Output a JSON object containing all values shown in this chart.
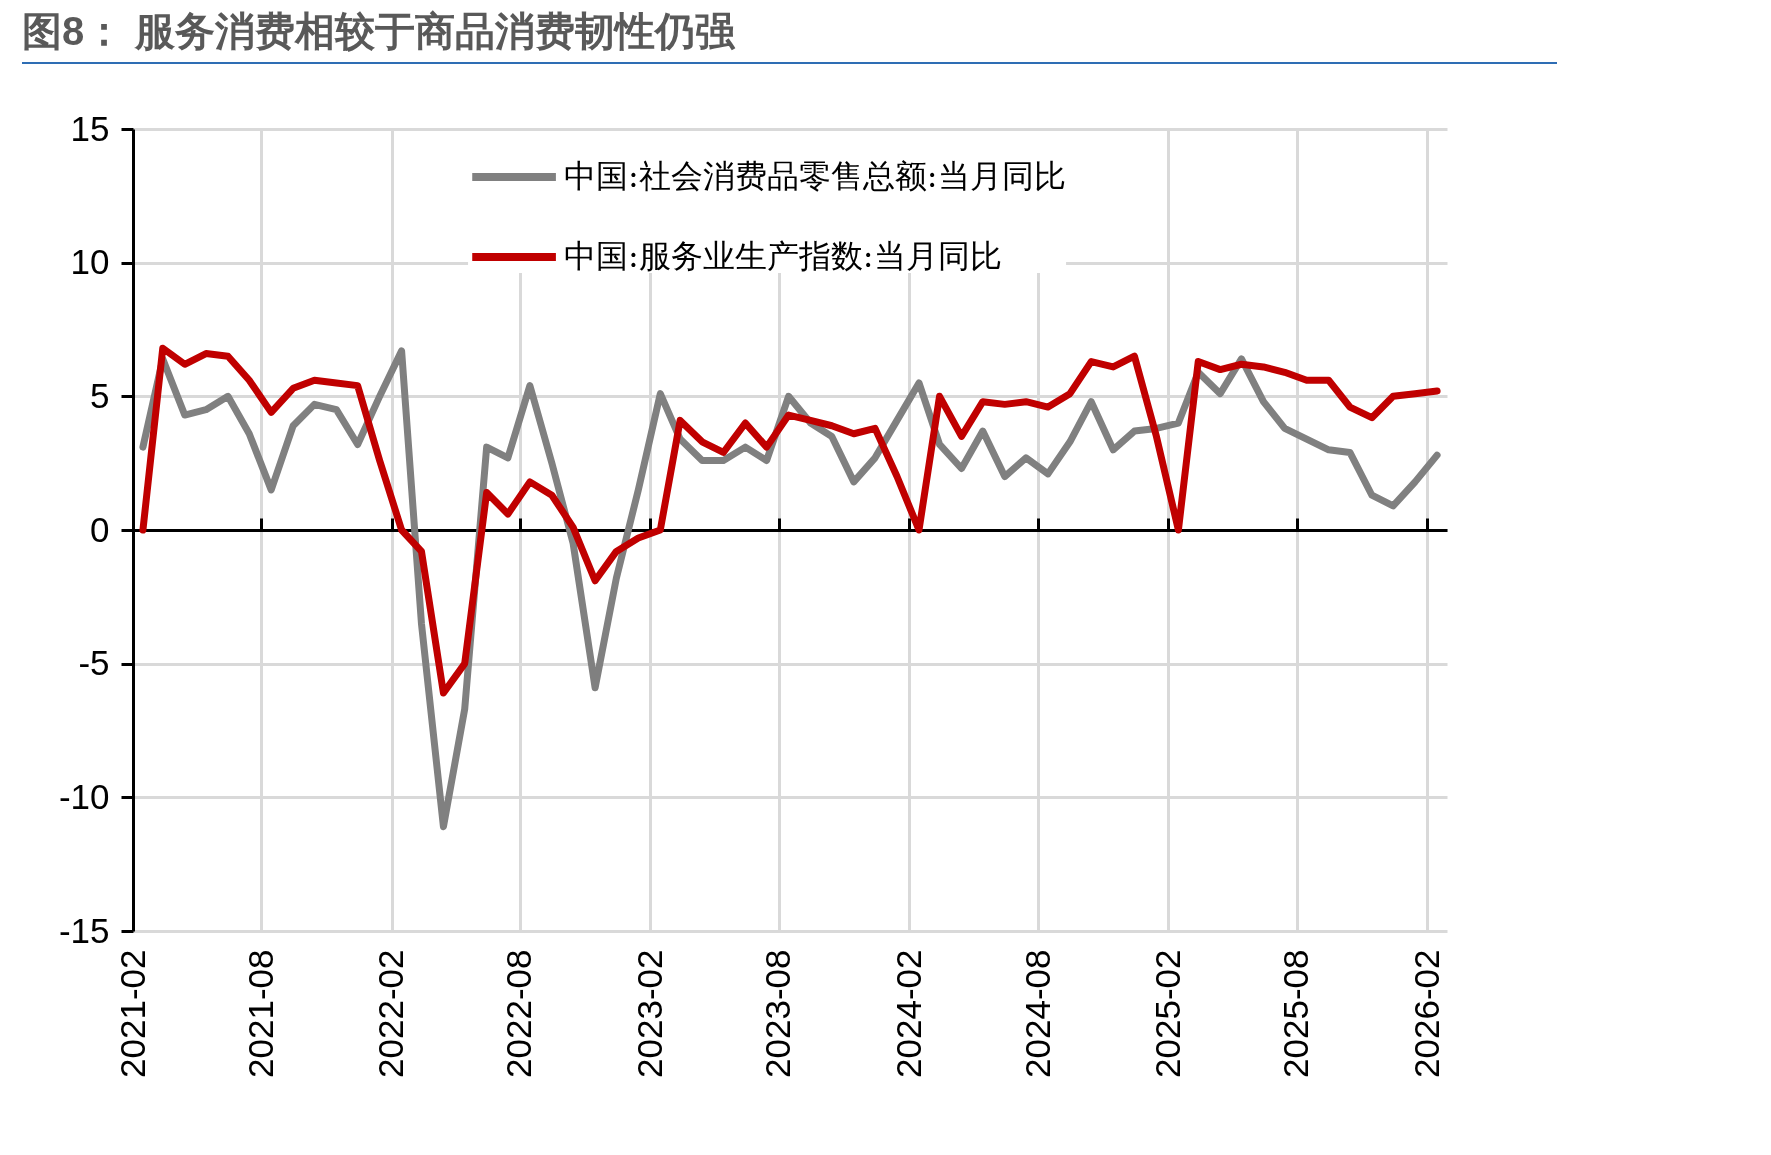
{
  "chart_data": {
    "type": "line",
    "title": "图8： 服务消费相较于商品消费韧性仍强",
    "x": [
      "2021-02-15",
      "2021-03-15",
      "2021-04-15",
      "2021-05-15",
      "2021-06-15",
      "2021-07-15",
      "2021-08-15",
      "2021-09-15",
      "2021-10-15",
      "2021-11-15",
      "2021-12-15",
      "2022-01-15",
      "2022-02-15",
      "2022-03-15",
      "2022-04-15",
      "2022-05-15",
      "2022-06-15",
      "2022-07-15",
      "2022-08-15",
      "2022-09-15",
      "2022-10-15",
      "2022-11-15",
      "2022-12-15",
      "2023-01-15",
      "2023-02-15",
      "2023-03-15",
      "2023-04-15",
      "2023-05-15",
      "2023-06-15",
      "2023-07-15",
      "2023-08-15",
      "2023-09-15",
      "2023-10-15",
      "2023-11-15",
      "2023-12-15",
      "2024-01-15",
      "2024-02-15",
      "2024-03-15",
      "2024-04-15",
      "2024-05-15",
      "2024-06-15",
      "2024-07-15",
      "2024-08-15",
      "2024-09-15",
      "2024-10-15",
      "2024-11-15",
      "2024-12-15",
      "2025-01-15",
      "2025-02-15",
      "2025-03-15",
      "2025-04-15",
      "2025-05-15",
      "2025-06-15",
      "2025-07-15",
      "2025-08-15",
      "2025-09-15",
      "2025-10-15",
      "2025-11-15",
      "2025-12-15",
      "2026-01-15",
      "2026-02-15"
    ],
    "series": [
      {
        "name": "中国:社会消费品零售总额:当月同比",
        "color": "#808080",
        "values": [
          3.1,
          6.4,
          4.3,
          4.5,
          5.0,
          3.6,
          1.5,
          3.9,
          4.7,
          4.5,
          3.2,
          5.0,
          6.7,
          -3.5,
          -11.1,
          -6.7,
          3.1,
          2.7,
          5.4,
          2.5,
          -0.5,
          -5.9,
          -1.8,
          1.5,
          5.1,
          3.4,
          2.6,
          2.6,
          3.1,
          2.6,
          5.0,
          4.0,
          3.5,
          1.8,
          2.7,
          4.1,
          5.5,
          3.2,
          2.3,
          3.7,
          2.0,
          2.7,
          2.1,
          3.3,
          4.8,
          3.0,
          3.7,
          3.8,
          4.0,
          5.9,
          5.1,
          6.4,
          4.8,
          3.8,
          3.4,
          3.0,
          2.9,
          1.3,
          0.9,
          1.8,
          2.8
        ]
      },
      {
        "name": "中国:服务业生产指数:当月同比",
        "color": "#c00000",
        "values": [
          0.0,
          6.8,
          6.2,
          6.6,
          6.5,
          5.6,
          4.4,
          5.3,
          5.6,
          5.5,
          5.4,
          2.6,
          0.0,
          -0.8,
          -6.1,
          -5.0,
          1.4,
          0.6,
          1.8,
          1.3,
          0.1,
          -1.9,
          -0.8,
          -0.3,
          0.0,
          4.1,
          3.3,
          2.9,
          4.0,
          3.1,
          4.3,
          4.1,
          3.9,
          3.6,
          3.8,
          2.0,
          0.0,
          5.0,
          3.5,
          4.8,
          4.7,
          4.8,
          4.6,
          5.1,
          6.3,
          6.1,
          6.5,
          3.5,
          0.0,
          6.3,
          6.0,
          6.2,
          6.1,
          5.9,
          5.6,
          5.6,
          4.6,
          4.2,
          5.0,
          5.1,
          5.2
        ]
      }
    ],
    "xlim": [
      "2021-02-01",
      "2026-03-01"
    ],
    "xticks": [
      "2021-02",
      "2021-08",
      "2022-02",
      "2022-08",
      "2023-02",
      "2023-08",
      "2024-02",
      "2024-08",
      "2025-02",
      "2025-08",
      "2026-02"
    ],
    "ylim": [
      -15,
      15
    ],
    "yticks": [
      -15,
      -10,
      -5,
      0,
      5,
      10,
      15
    ],
    "grid": true,
    "legend": "top",
    "marker": "none",
    "line_style": "solid"
  }
}
